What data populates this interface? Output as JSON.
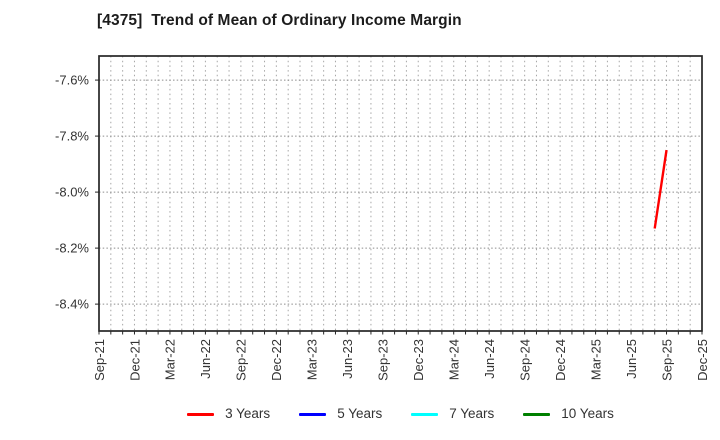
{
  "window": {
    "background": "#ffffff"
  },
  "chart_data": {
    "type": "line",
    "title": "[4375]  Trend of Mean of Ordinary Income Margin",
    "xlabel": "",
    "ylabel": "",
    "grid": "dotted, monthly vertical and 0.2% horizontal",
    "legend_position": "bottom",
    "axis_color": "#262626",
    "tick_label_color": "#333333",
    "ylim": [
      -8.496,
      -7.514
    ],
    "y_ticks": [
      {
        "label": "-7.6%",
        "value": -7.6
      },
      {
        "label": "-7.8%",
        "value": -7.8
      },
      {
        "label": "-8.0%",
        "value": -8.0
      },
      {
        "label": "-8.2%",
        "value": -8.2
      },
      {
        "label": "-8.4%",
        "value": -8.4
      }
    ],
    "x_range": {
      "start": "Sep-21",
      "end": "Dec-25",
      "interval": "monthly"
    },
    "x_ticks": [
      "Sep-21",
      "Dec-21",
      "Mar-22",
      "Jun-22",
      "Sep-22",
      "Dec-22",
      "Mar-23",
      "Jun-23",
      "Sep-23",
      "Dec-23",
      "Mar-24",
      "Jun-24",
      "Sep-24",
      "Dec-24",
      "Mar-25",
      "Jun-25",
      "Sep-25",
      "Dec-25"
    ],
    "series": [
      {
        "name": "3 Years",
        "color": "#ff0000",
        "points": [
          {
            "x": "Aug-25",
            "y": -8.13
          },
          {
            "x": "Sep-25",
            "y": -7.85
          }
        ]
      },
      {
        "name": "5 Years",
        "color": "#0000ff",
        "points": []
      },
      {
        "name": "7 Years",
        "color": "#00ffff",
        "points": []
      },
      {
        "name": "10 Years",
        "color": "#008000",
        "points": []
      }
    ]
  }
}
